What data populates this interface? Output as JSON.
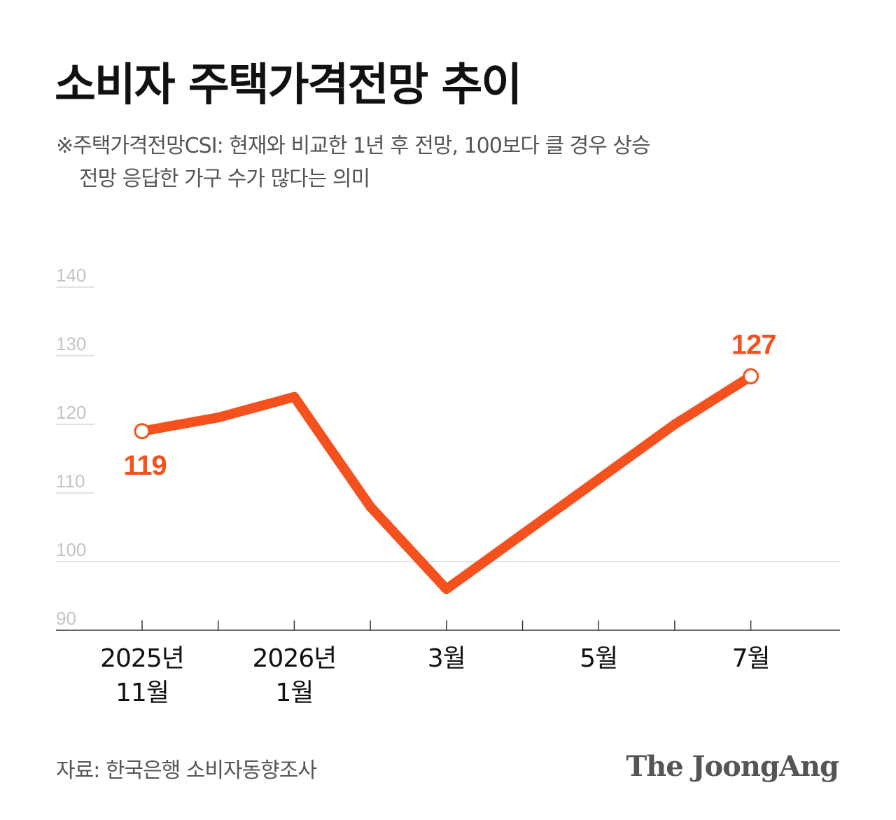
{
  "title": "소비자 주택가격전망 추이",
  "note": {
    "line1": "※주택가격전망CSI: 현재와 비교한 1년 후 전망, 100보다 클 경우 상승",
    "line2": "전망 응답한 가구 수가 많다는 의미"
  },
  "source": "자료: 한국은행 소비자동향조사",
  "brand": "The JoongAng",
  "colors": {
    "line": "#F4511E",
    "grid": "#d9d9d9",
    "tick_text": "#c4c4c4",
    "axis": "#333333"
  },
  "chart_data": {
    "type": "line",
    "x": [
      "2025-11",
      "2025-12",
      "2026-01",
      "2026-02",
      "2026-03",
      "2026-04",
      "2026-05",
      "2026-06",
      "2026-07"
    ],
    "values": [
      119,
      121,
      124,
      108,
      96,
      104,
      112,
      120,
      127
    ],
    "x_tick_labels": [
      {
        "index": 0,
        "lines": [
          "2025년",
          "11월"
        ]
      },
      {
        "index": 2,
        "lines": [
          "2026년",
          "1월"
        ]
      },
      {
        "index": 4,
        "lines": [
          "3월"
        ]
      },
      {
        "index": 6,
        "lines": [
          "5월"
        ]
      },
      {
        "index": 8,
        "lines": [
          "7월"
        ]
      }
    ],
    "y_ticks": [
      90,
      100,
      110,
      120,
      130,
      140
    ],
    "ylim": [
      90,
      140
    ],
    "reference_line": 100,
    "annotations": [
      {
        "index": 0,
        "label": "119",
        "position": "below"
      },
      {
        "index": 8,
        "label": "127",
        "position": "above"
      }
    ],
    "legend": "none"
  }
}
